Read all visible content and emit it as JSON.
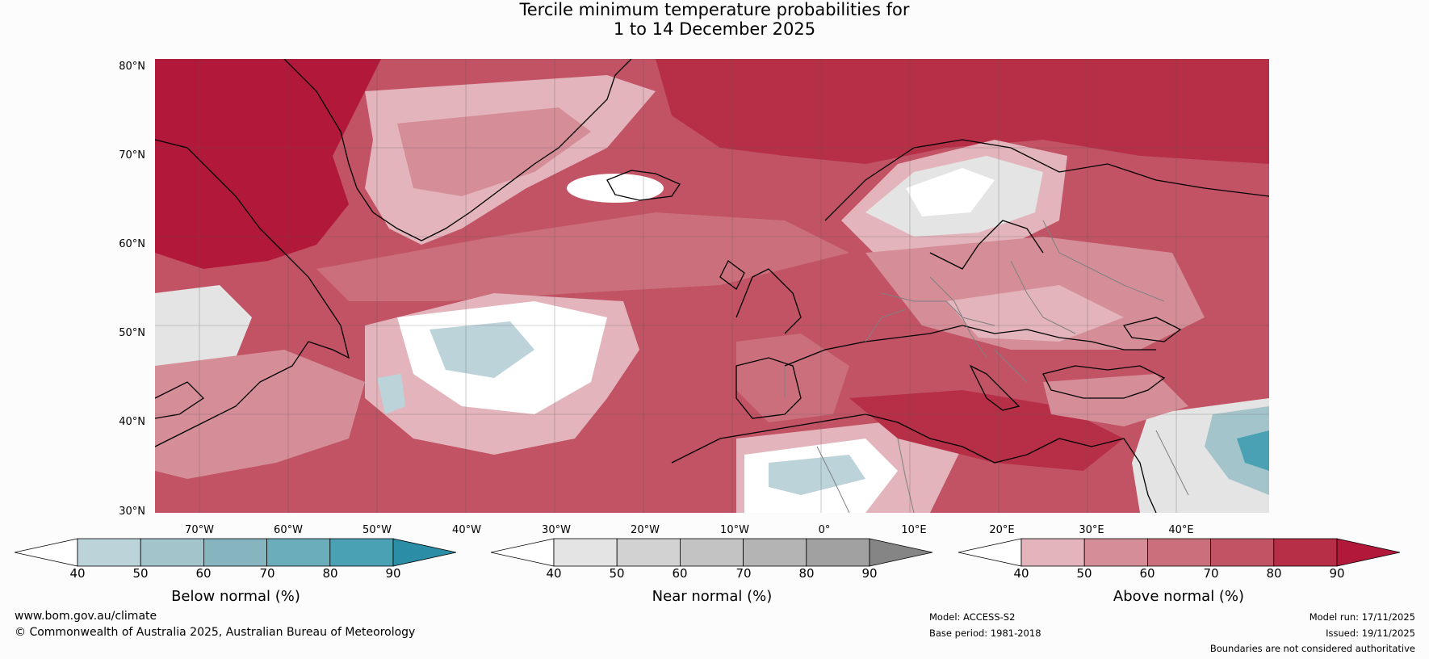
{
  "title": {
    "line1": "Tercile minimum temperature probabilities for",
    "line2": "1 to 14 December 2025"
  },
  "map": {
    "lat_labels": [
      "80°N",
      "70°N",
      "60°N",
      "50°N",
      "40°N",
      "30°N"
    ],
    "lon_labels": [
      "70°W",
      "60°W",
      "50°W",
      "40°W",
      "30°W",
      "20°W",
      "10°W",
      "0°",
      "10°E",
      "20°E",
      "30°E",
      "40°E"
    ]
  },
  "colorbars": [
    {
      "title": "Below normal (%)",
      "ticks": [
        "40",
        "50",
        "60",
        "70",
        "80",
        "90"
      ],
      "colors": [
        "#ffffff",
        "#bcd3da",
        "#a4c4cb",
        "#87b5bf",
        "#6badbb",
        "#4aa1b3",
        "#2b8ea6"
      ]
    },
    {
      "title": "Near normal (%)",
      "ticks": [
        "40",
        "50",
        "60",
        "70",
        "80",
        "90"
      ],
      "colors": [
        "#ffffff",
        "#e4e4e4",
        "#d2d2d2",
        "#c3c3c3",
        "#b4b4b4",
        "#a1a1a1",
        "#858585"
      ]
    },
    {
      "title": "Above normal (%)",
      "ticks": [
        "40",
        "50",
        "60",
        "70",
        "80",
        "90"
      ],
      "colors": [
        "#ffffff",
        "#e3b4bb",
        "#d58e98",
        "#ca6f7b",
        "#c15365",
        "#b72f46",
        "#b2183a"
      ]
    }
  ],
  "footer": {
    "website": "www.bom.gov.au/climate",
    "copyright": "© Commonwealth of Australia 2025, Australian Bureau of Meteorology",
    "model": "Model: ACCESS-S2",
    "base_period": "Base period: 1981-2018",
    "model_run": "Model run: 17/11/2025",
    "issued": "Issued: 19/11/2025",
    "disclaimer": "Boundaries are not considered authoritative"
  }
}
